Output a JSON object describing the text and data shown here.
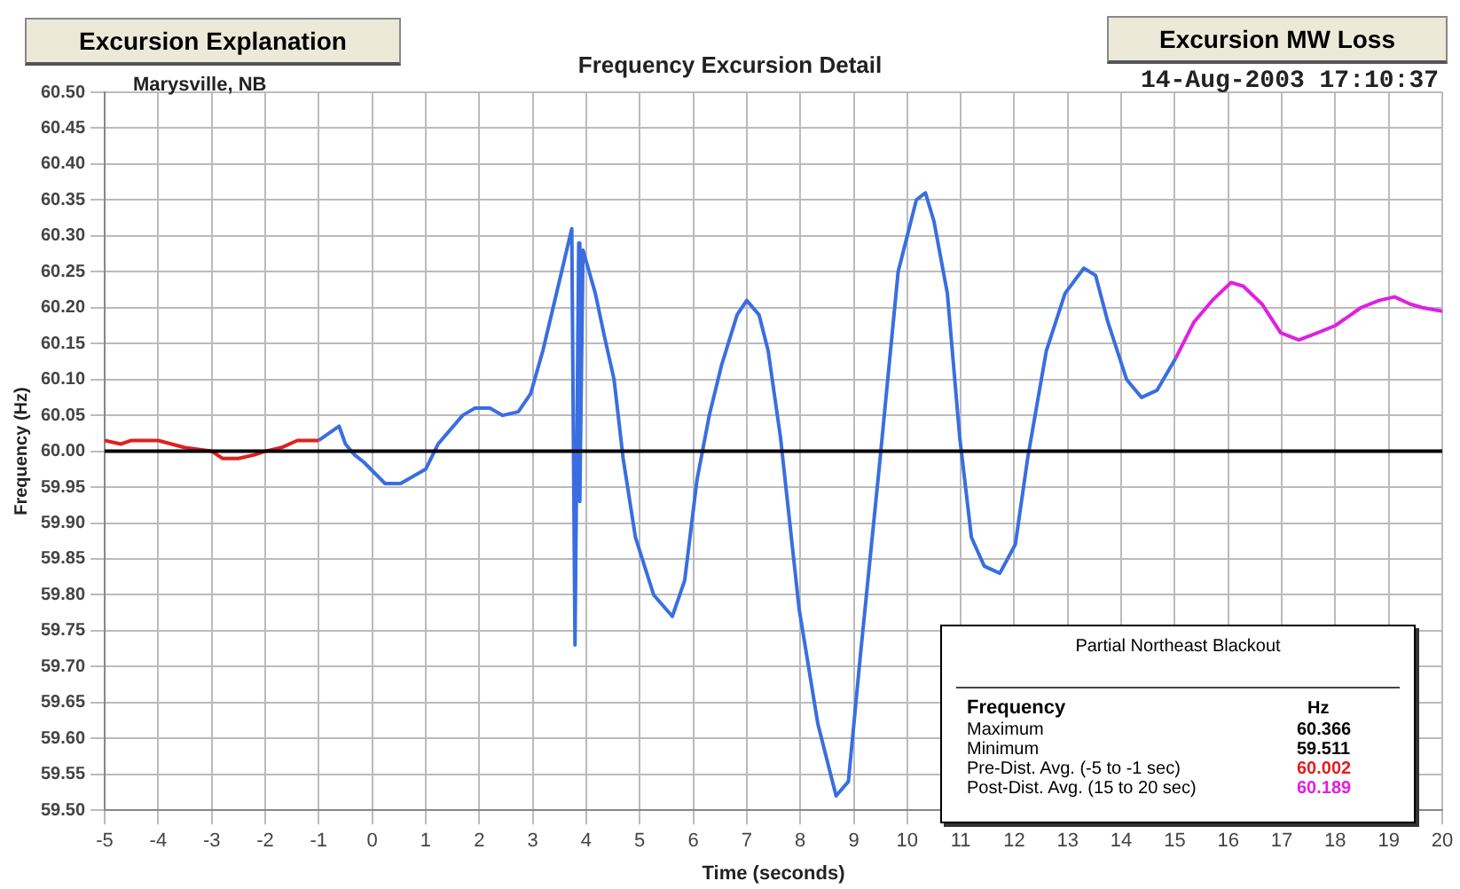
{
  "chart_data": {
    "type": "line",
    "title": "Frequency Excursion Detail",
    "subtitle": "Marysville, NB",
    "xlabel": "Time (seconds)",
    "ylabel": "Frequency (Hz)",
    "annotations": [
      "Excursion Explanation",
      "Excursion MW Loss",
      "14-Aug-2003 17:10:37",
      "Partial Northeast Blackout",
      "Frequency",
      "Hz",
      "Maximum",
      "60.366",
      "Minimum",
      "59.511",
      "Pre-Dist. Avg. (-5 to -1 sec)",
      "60.002",
      "Post-Dist. Avg. (15 to 20 sec)",
      "60.189"
    ],
    "xlim": [
      -5,
      20
    ],
    "xticks": [
      -5,
      -4,
      -3,
      -2,
      -1,
      0,
      1,
      2,
      3,
      4,
      5,
      6,
      7,
      8,
      9,
      10,
      11,
      12,
      13,
      14,
      15,
      16,
      17,
      18,
      19,
      20
    ],
    "ylim": [
      59.5,
      60.5
    ],
    "yticks": [
      {
        "value": 59.5,
        "label": "59.50"
      },
      {
        "value": 59.55,
        "label": "59.55"
      },
      {
        "value": 59.6,
        "label": "59.60"
      },
      {
        "value": 59.65,
        "label": "59.65"
      },
      {
        "value": 59.7,
        "label": "59.70"
      },
      {
        "value": 59.75,
        "label": "59.75"
      },
      {
        "value": 59.8,
        "label": "59.80"
      },
      {
        "value": 59.85,
        "label": "59.85"
      },
      {
        "value": 59.9,
        "label": "59.90"
      },
      {
        "value": 59.95,
        "label": "59.95"
      },
      {
        "value": 60.0,
        "label": "60.00"
      },
      {
        "value": 60.05,
        "label": "60.05"
      },
      {
        "value": 60.1,
        "label": "60.10"
      },
      {
        "value": 60.15,
        "label": "60.15"
      },
      {
        "value": 60.2,
        "label": "60.20"
      },
      {
        "value": 60.25,
        "label": "60.25"
      },
      {
        "value": 60.3,
        "label": "60.30"
      },
      {
        "value": 60.35,
        "label": "60.35"
      },
      {
        "value": 60.4,
        "label": "60.40"
      },
      {
        "value": 60.45,
        "label": "60.45"
      },
      {
        "value": 60.5,
        "label": "60.50"
      }
    ],
    "grid": true,
    "legend": false,
    "marker": "none",
    "line_style": "solid",
    "ref_lines": [
      {
        "axis": "y",
        "value": 60.0,
        "color": "#000000"
      }
    ],
    "series": [
      {
        "color": "#e02020",
        "x": [
          -5,
          -4.7,
          -4.5,
          -4,
          -3.5,
          -3,
          -2.8,
          -2.5,
          -2.2,
          -2,
          -1.7,
          -1.4,
          -1
        ],
        "values": [
          60.015,
          60.01,
          60.015,
          60.015,
          60.005,
          60.0,
          59.99,
          59.99,
          59.995,
          60.0,
          60.005,
          60.015,
          60.015
        ]
      },
      {
        "color": "#3a6ee0",
        "x": [
          -1,
          -0.62,
          -0.5,
          -0.33,
          -0.16,
          0.24,
          0.53,
          1.0,
          1.23,
          1.69,
          1.92,
          2.2,
          2.44,
          2.73,
          2.96,
          3.19,
          3.54,
          3.73,
          3.79,
          3.86,
          3.88,
          3.94,
          4.17,
          4.34,
          4.52,
          4.69,
          4.92,
          5.26,
          5.61,
          5.84,
          6.07,
          6.3,
          6.53,
          6.82,
          7.0,
          7.23,
          7.4,
          7.63,
          7.98,
          8.33,
          8.67,
          8.9,
          9.13,
          9.48,
          9.83,
          10.17,
          10.34,
          10.5,
          10.75,
          10.98,
          11.2,
          11.44,
          11.73,
          12.02,
          12.25,
          12.6,
          12.95,
          13.3,
          13.52,
          13.75,
          14.1,
          14.38,
          14.67,
          15.02
        ],
        "values": [
          60.015,
          60.035,
          60.01,
          59.995,
          59.985,
          59.955,
          59.955,
          59.975,
          60.01,
          60.05,
          60.06,
          60.06,
          60.05,
          60.055,
          60.08,
          60.14,
          60.25,
          60.31,
          59.73,
          60.29,
          59.93,
          60.28,
          60.22,
          60.16,
          60.1,
          59.99,
          59.88,
          59.8,
          59.77,
          59.82,
          59.96,
          60.05,
          60.12,
          60.19,
          60.21,
          60.19,
          60.14,
          60.02,
          59.78,
          59.62,
          59.52,
          59.54,
          59.72,
          59.98,
          60.25,
          60.35,
          60.36,
          60.32,
          60.22,
          60.02,
          59.88,
          59.84,
          59.83,
          59.87,
          59.99,
          60.14,
          60.22,
          60.255,
          60.245,
          60.18,
          60.1,
          60.075,
          60.085,
          60.13
        ]
      },
      {
        "color": "#e020e0",
        "x": [
          15.02,
          15.36,
          15.7,
          16.05,
          16.28,
          16.63,
          16.98,
          17.32,
          17.67,
          18.0,
          18.48,
          18.82,
          19.11,
          19.4,
          19.63,
          20.0
        ],
        "values": [
          60.13,
          60.18,
          60.21,
          60.235,
          60.23,
          60.205,
          60.165,
          60.155,
          60.165,
          60.175,
          60.2,
          60.21,
          60.215,
          60.205,
          60.2,
          60.195
        ]
      }
    ]
  }
}
